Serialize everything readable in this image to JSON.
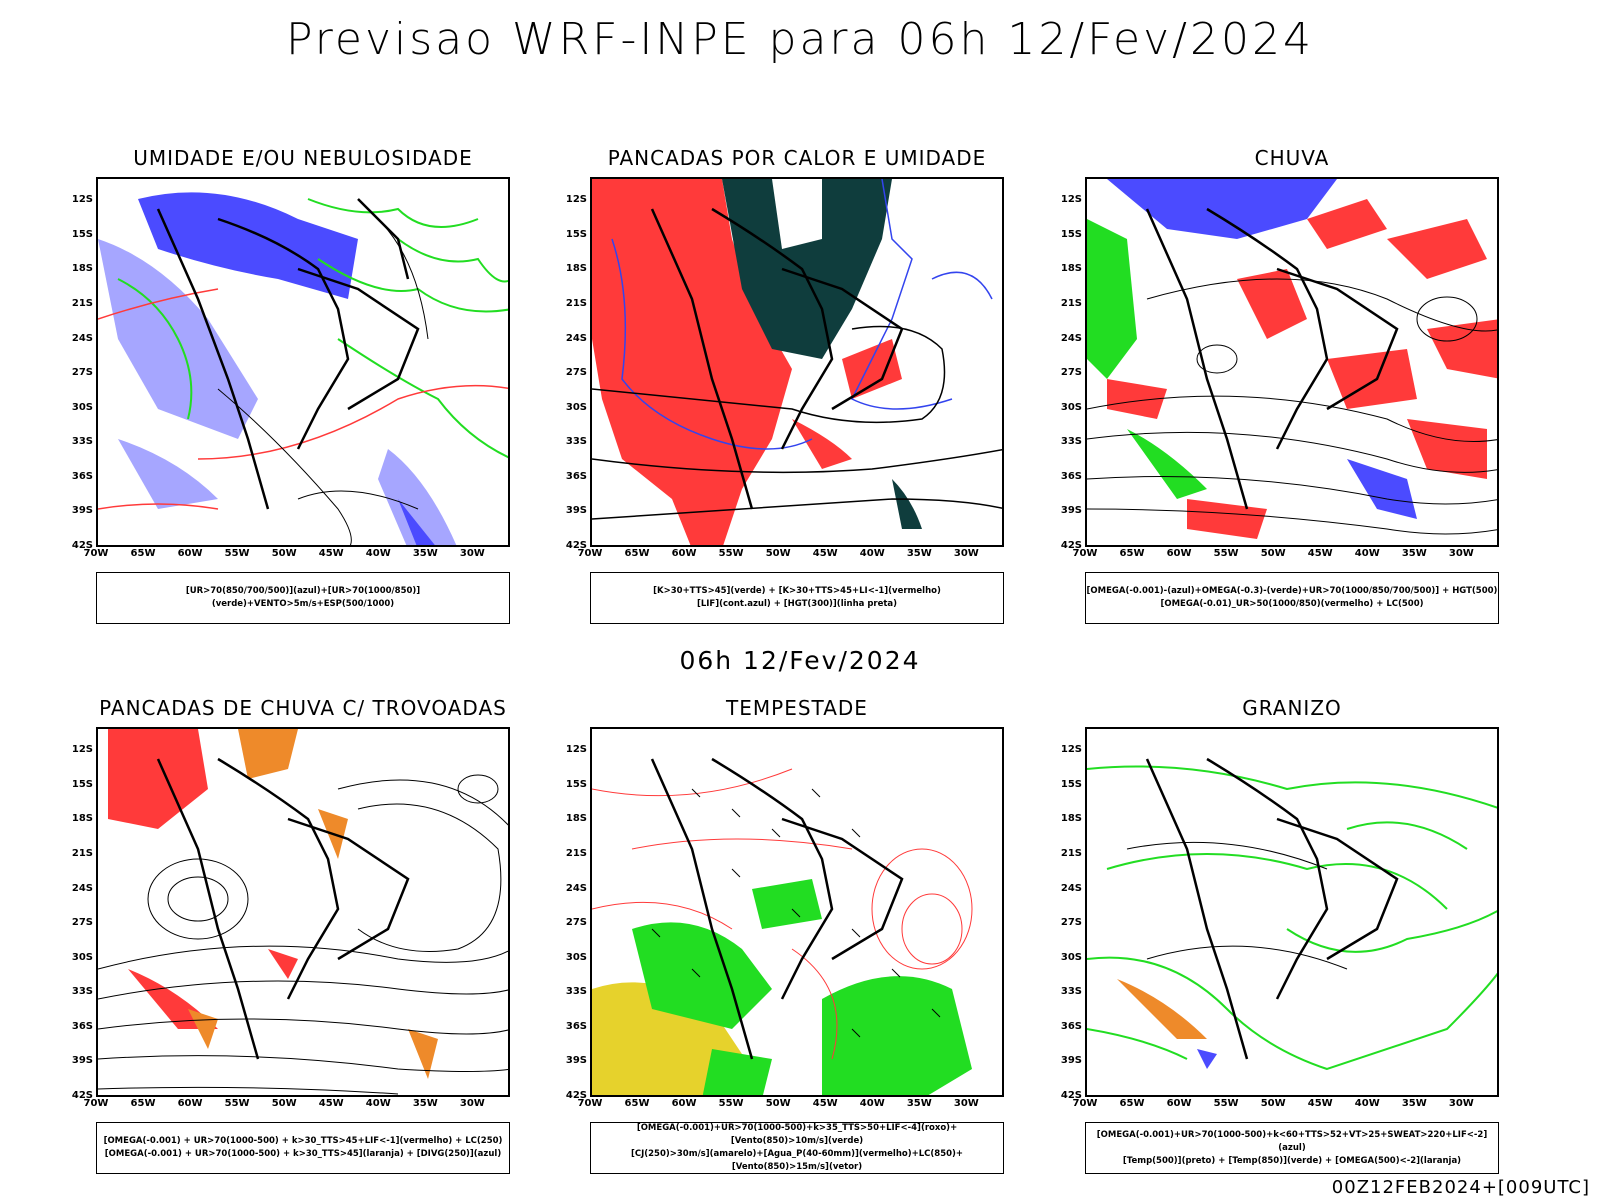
{
  "title": "Previsao WRF-INPE  para 06h 12/Fev/2024",
  "subtitle": "06h 12/Fev/2024",
  "footer": "00Z12FEB2024+[009UTC]",
  "y_ticks": [
    "12S",
    "15S",
    "18S",
    "21S",
    "24S",
    "27S",
    "30S",
    "33S",
    "36S",
    "39S",
    "42S"
  ],
  "x_ticks": [
    "70W",
    "65W",
    "60W",
    "55W",
    "50W",
    "45W",
    "40W",
    "35W",
    "30W"
  ],
  "colors": {
    "blue": "#4b4bff",
    "lightblue": "#a6a6ff",
    "green": "#22dd22",
    "red": "#ff3a3a",
    "darkteal": "#0f3d3d",
    "orange": "#ee8a2a",
    "yellow": "#e6d22c",
    "black": "#000000"
  },
  "panels": [
    {
      "title": "UMIDADE E/OU NEBULOSIDADE",
      "legend": [
        "[UR>70(850/700/500)](azul)+[UR>70(1000/850)](verde)+VENTO>5m/s+ESP(500/1000)"
      ]
    },
    {
      "title": "PANCADAS POR CALOR E UMIDADE",
      "legend": [
        "[K>30+TTS>45](verde)  +  [K>30+TTS>45+LI<-1](vermelho)",
        "[LIF](cont.azul)  +  [HGT(300)](linha preta)"
      ]
    },
    {
      "title": "CHUVA",
      "legend": [
        "[OMEGA(-0.001)-(azul)+OMEGA(-0.3)-(verde)+UR>70(1000/850/700/500)]  +  HGT(500)",
        "[OMEGA(-0.01)_UR>50(1000/850)(vermelho)  +  LC(500)"
      ]
    },
    {
      "title": "PANCADAS DE CHUVA C/ TROVOADAS",
      "legend": [
        "[OMEGA(-0.001)  + UR>70(1000-500)  + k>30_TTS>45+LIF<-1](vermelho)  + LC(250)",
        "[OMEGA(-0.001)  + UR>70(1000-500)  + k>30_TTS>45](laranja)  + [DIVG(250)](azul)"
      ]
    },
    {
      "title": "TEMPESTADE",
      "legend": [
        "[OMEGA(-0.001)+UR>70(1000-500)+k>35_TTS>50+LIF<-4](roxo)+[Vento(850)>10m/s](verde)",
        "[CJ(250)>30m/s](amarelo)+[Agua_P(40-60mm)](vermelho)+LC(850)+[Vento(850)>15m/s](vetor)"
      ]
    },
    {
      "title": "GRANIZO",
      "legend": [
        "[OMEGA(-0.001)+UR>70(1000-500)+k<60+TTS>52+VT>25+SWEAT>220+LIF<-2](azul)",
        "[Temp(500)](preto)  + [Temp(850)](verde)  + [OMEGA(500)<-2](laranja)"
      ]
    }
  ]
}
